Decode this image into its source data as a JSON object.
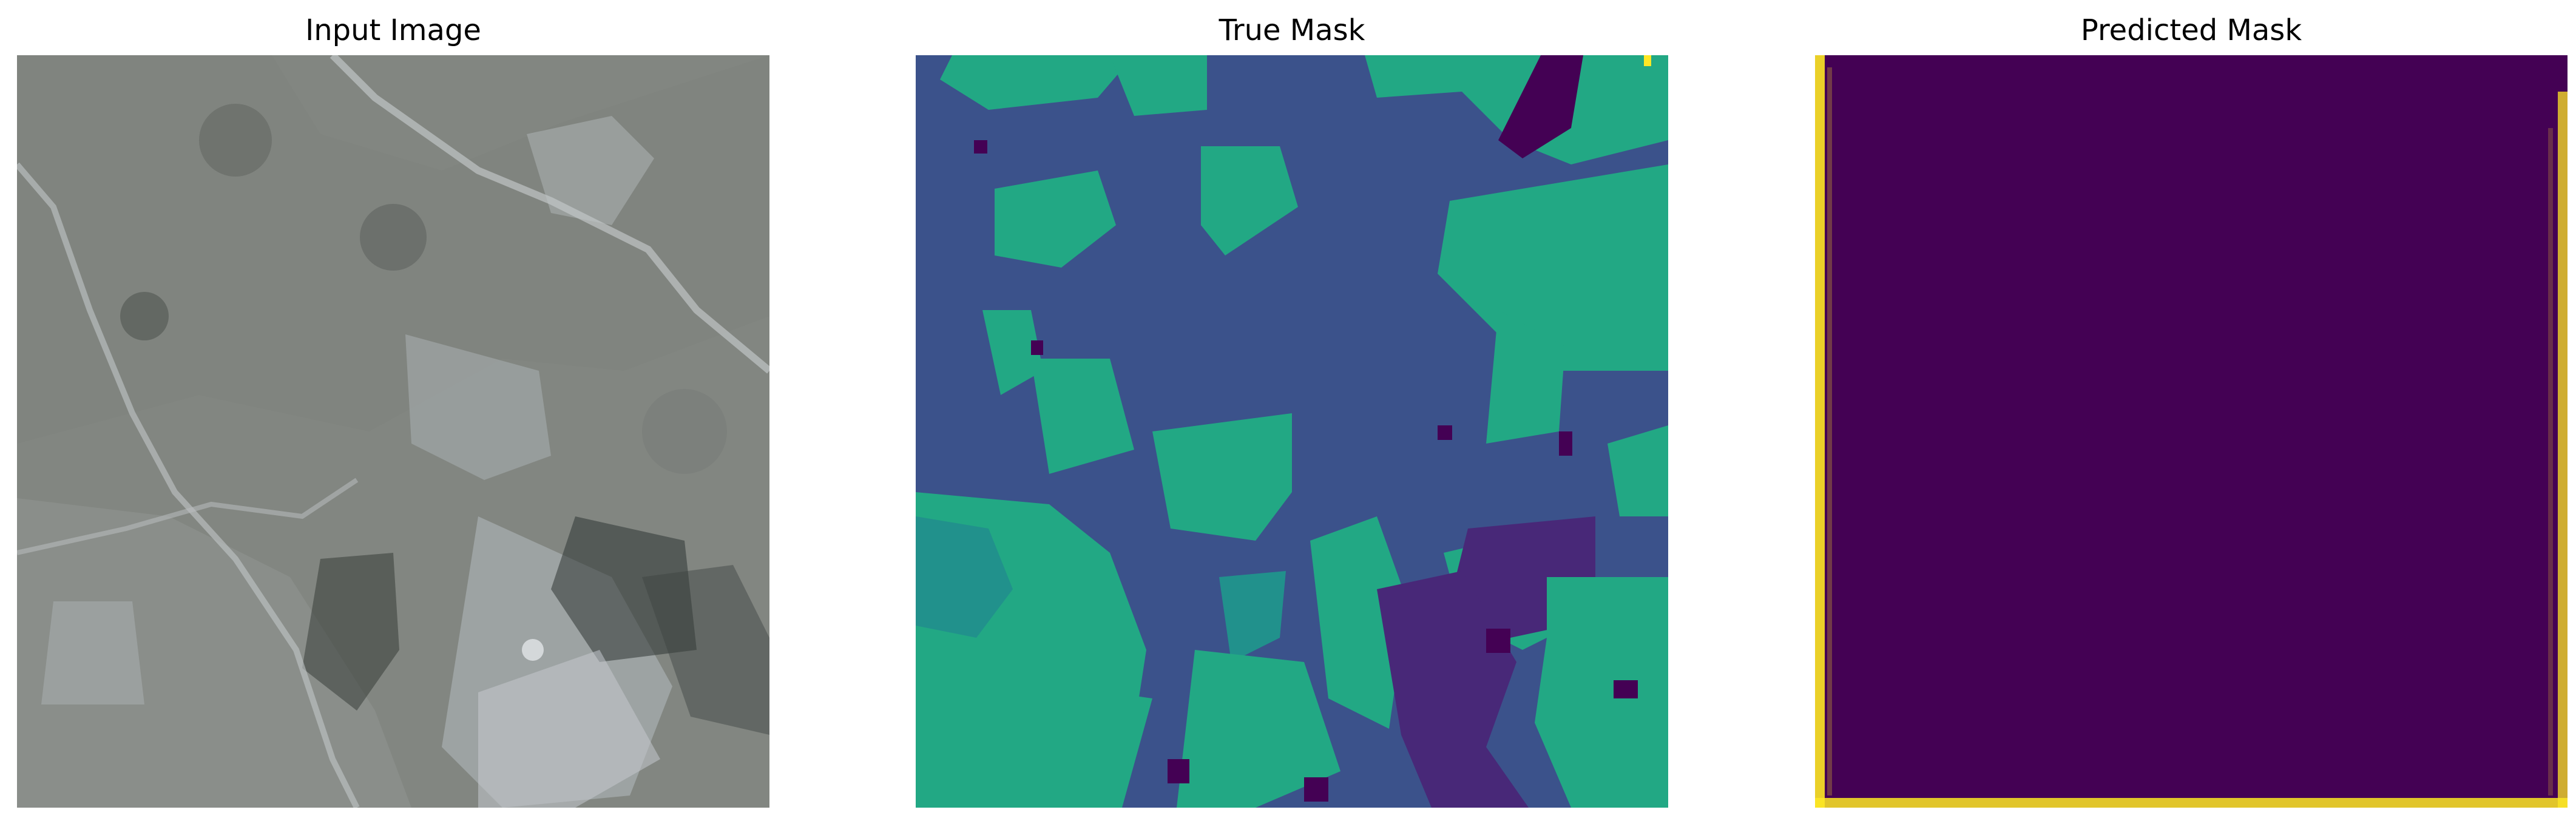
{
  "figure": {
    "panels": [
      {
        "title": "Input Image"
      },
      {
        "title": "True Mask"
      },
      {
        "title": "Predicted Mask"
      }
    ]
  },
  "colors": {
    "mask_dark_purple": "#440154",
    "mask_blue": "#3b528b",
    "mask_teal": "#21918c",
    "mask_green": "#22a884",
    "mask_yellow": "#fde725",
    "satellite_base": "#8e938f"
  }
}
